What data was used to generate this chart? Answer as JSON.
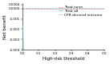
{
  "title": "",
  "xlabel": "High-risk threshold",
  "ylabel": "Net benefit",
  "xlim": [
    0.0,
    0.5
  ],
  "ylim": [
    -0.004,
    0.0005
  ],
  "yticks": [
    -0.004,
    -0.003,
    -0.002,
    -0.001,
    0.0,
    0.0004
  ],
  "ytick_labels": [
    "-0.004",
    "-0.003",
    "-0.002",
    "-0.001",
    "0.0000",
    "0.0004"
  ],
  "xticks": [
    0.0,
    0.1,
    0.2,
    0.3,
    0.4,
    0.5
  ],
  "xtick_labels": [
    "0.0",
    "0.1",
    "0.2",
    "0.3",
    "0.4",
    "0.5"
  ],
  "line_CPR_color": "#6aaed6",
  "line_CPR_style": "--",
  "line_CPR_label": "CPR-derived outcome",
  "line_treat_all_color": "#4cc9d6",
  "line_treat_all_style": "-",
  "line_treat_all_label": "Treat all",
  "line_treat_none_color": "#f0a0a0",
  "line_treat_none_style": "-",
  "line_treat_none_label": "Treat none",
  "background_color": "#ffffff",
  "legend_fontsize": 3.2,
  "axis_fontsize": 4.0,
  "tick_fontsize": 3.0,
  "prev": 0.00038
}
